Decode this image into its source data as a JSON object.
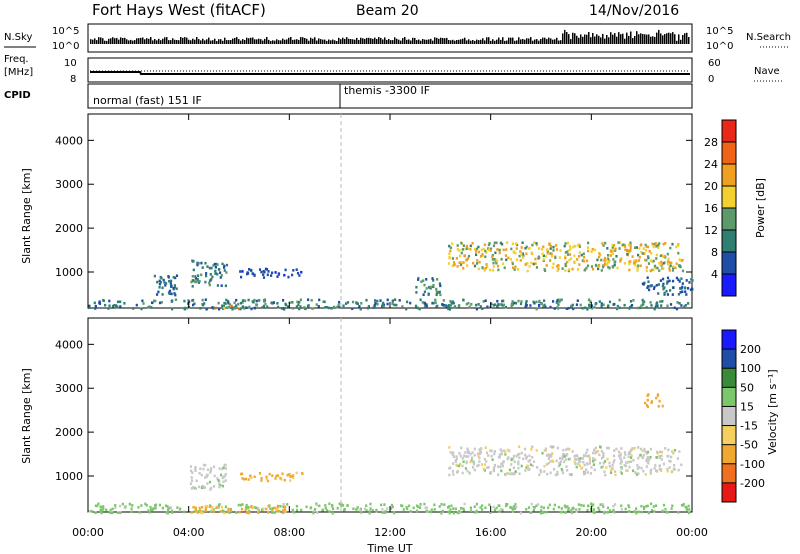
{
  "header": {
    "title": "Fort Hays West (fitACF)",
    "beam": "Beam 20",
    "date": "14/Nov/2016"
  },
  "noise_panel": {
    "left_label": "N.Sky",
    "right_label": "N.Search",
    "left_ticks": [
      "10^5",
      "10^0"
    ],
    "right_ticks": [
      "10^5",
      "10^0"
    ]
  },
  "freq_panel": {
    "left_label_line1": "Freq.",
    "left_label_line2": "[MHz]",
    "left_ticks": [
      "10",
      "8"
    ],
    "right_ticks": [
      "60",
      "0"
    ],
    "right_label": "Nave"
  },
  "cpid_panel": {
    "label": "CPID",
    "modes": [
      {
        "label": "normal (fast) 151 IF",
        "start_hour": 0
      },
      {
        "label": "themis -3300 IF",
        "start_hour": 10
      }
    ]
  },
  "x_axis": {
    "label": "Time UT",
    "ticks": [
      "00:00",
      "04:00",
      "08:00",
      "12:00",
      "16:00",
      "20:00",
      "00:00"
    ]
  },
  "colors": {
    "power": [
      "#1a1aff",
      "#1e4ea6",
      "#2f7e72",
      "#5c9a6a",
      "#f2d030",
      "#f0a020",
      "#f06418",
      "#e82818"
    ],
    "velocity": [
      "#e81818",
      "#f07020",
      "#f0a830",
      "#f5d060",
      "#c8c8c8",
      "#7cc66c",
      "#3a8a3a",
      "#1e4ea6",
      "#1a1aff"
    ]
  },
  "chart_data": [
    {
      "type": "heatmap",
      "title": "Power",
      "xlabel": "Time UT",
      "ylabel": "Slant Range [km]",
      "xlim": [
        0,
        24
      ],
      "ylim": [
        180,
        4600
      ],
      "yticks": [
        "1000",
        "2000",
        "3000",
        "4000"
      ],
      "colorbar": {
        "label": "Power [dB]",
        "range": [
          0,
          32
        ],
        "ticks": [
          "4",
          "8",
          "12",
          "16",
          "20",
          "24",
          "28"
        ]
      },
      "regions": [
        {
          "t0": 14.3,
          "t1": 23.6,
          "r0": 1050,
          "r1": 1700,
          "peak_db": 24
        },
        {
          "t0": 4.0,
          "t1": 5.5,
          "r0": 700,
          "r1": 1300,
          "peak_db": 14
        },
        {
          "t0": 2.5,
          "t1": 3.5,
          "r0": 500,
          "r1": 1000,
          "peak_db": 10
        },
        {
          "t0": 6.0,
          "t1": 8.5,
          "r0": 900,
          "r1": 1100,
          "peak_db": 8
        },
        {
          "t0": 13.0,
          "t1": 14.0,
          "r0": 500,
          "r1": 900,
          "peak_db": 16
        },
        {
          "t0": 0.0,
          "t1": 24.0,
          "r0": 180,
          "r1": 400,
          "peak_db": 14
        },
        {
          "t0": 5.0,
          "t1": 6.0,
          "r0": 180,
          "r1": 300,
          "peak_db": 28
        },
        {
          "t0": 22.0,
          "t1": 24.0,
          "r0": 500,
          "r1": 900,
          "peak_db": 10
        }
      ]
    },
    {
      "type": "heatmap",
      "title": "Velocity",
      "xlabel": "Time UT",
      "ylabel": "Slant Range [km]",
      "xlim": [
        0,
        24
      ],
      "ylim": [
        180,
        4600
      ],
      "yticks": [
        "1000",
        "2000",
        "3000",
        "4000"
      ],
      "colorbar": {
        "label": "Velocity [m s⁻¹]",
        "range": [
          -250,
          250
        ],
        "ticks": [
          "-200",
          "-100",
          "-50",
          "-15",
          "15",
          "50",
          "100",
          "200"
        ]
      },
      "regions": [
        {
          "t0": 14.3,
          "t1": 23.6,
          "r0": 1050,
          "r1": 1700,
          "velocity": 0
        },
        {
          "t0": 4.0,
          "t1": 5.5,
          "r0": 700,
          "r1": 1300,
          "velocity": 5
        },
        {
          "t0": 6.0,
          "t1": 8.5,
          "r0": 900,
          "r1": 1100,
          "velocity": -60
        },
        {
          "t0": 0.0,
          "t1": 24.0,
          "r0": 180,
          "r1": 400,
          "velocity": 30
        },
        {
          "t0": 4.0,
          "t1": 8.0,
          "r0": 180,
          "r1": 350,
          "velocity": -60
        },
        {
          "t0": 22.0,
          "t1": 22.8,
          "r0": 2600,
          "r1": 2900,
          "velocity": -70
        }
      ]
    }
  ]
}
